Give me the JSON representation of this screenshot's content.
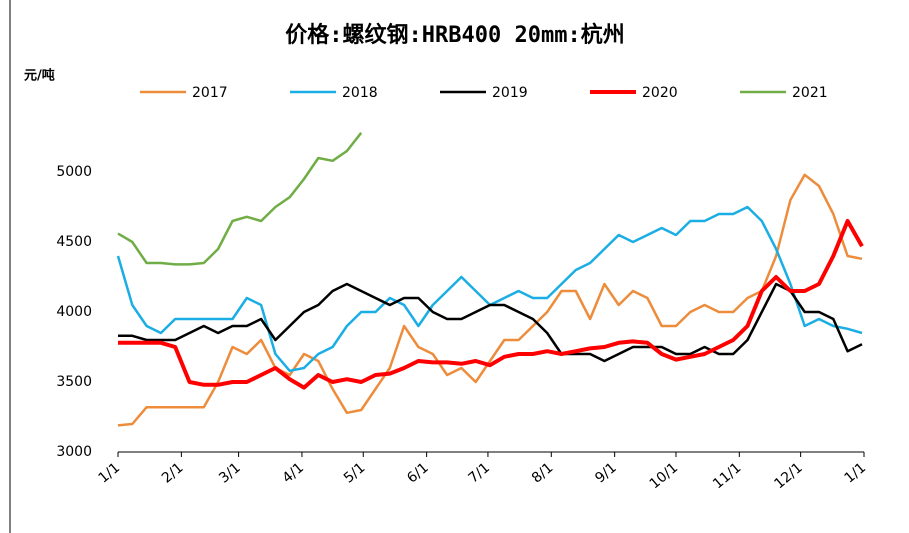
{
  "chart_data": {
    "type": "line",
    "title": "价格:螺纹钢:HRB400 20mm:杭州",
    "y_label": "元/吨",
    "x": [
      0,
      7,
      14,
      21,
      28,
      35,
      42,
      49,
      56,
      63,
      70,
      77,
      84,
      91,
      98,
      105,
      112,
      119,
      126,
      133,
      140,
      147,
      154,
      161,
      168,
      175,
      182,
      189,
      196,
      203,
      210,
      217,
      224,
      231,
      238,
      245,
      252,
      259,
      266,
      273,
      280,
      287,
      294,
      301,
      308,
      315,
      322,
      329,
      336,
      343,
      350,
      357,
      364
    ],
    "xlim": [
      0,
      365
    ],
    "xticks": [
      {
        "value": 0,
        "label": "1/1"
      },
      {
        "value": 31,
        "label": "2/1"
      },
      {
        "value": 59,
        "label": "3/1"
      },
      {
        "value": 90,
        "label": "4/1"
      },
      {
        "value": 120,
        "label": "5/1"
      },
      {
        "value": 151,
        "label": "6/1"
      },
      {
        "value": 181,
        "label": "7/1"
      },
      {
        "value": 212,
        "label": "8/1"
      },
      {
        "value": 243,
        "label": "9/1"
      },
      {
        "value": 273,
        "label": "10/1"
      },
      {
        "value": 304,
        "label": "11/1"
      },
      {
        "value": 334,
        "label": "12/1"
      },
      {
        "value": 365,
        "label": "1/1"
      }
    ],
    "ylim": [
      3000,
      5300
    ],
    "yticks": [
      3000,
      3500,
      4000,
      4500,
      5000
    ],
    "grid": false,
    "legend": "top",
    "series": [
      {
        "name": "2017",
        "color": "#ed8c3b",
        "values": [
          3190,
          3200,
          3320,
          3320,
          3320,
          3320,
          3320,
          3500,
          3750,
          3700,
          3800,
          3600,
          3550,
          3700,
          3650,
          3450,
          3280,
          3300,
          3450,
          3600,
          3900,
          3750,
          3700,
          3550,
          3600,
          3500,
          3650,
          3800,
          3800,
          3900,
          4000,
          4150,
          4150,
          3950,
          4200,
          4050,
          4150,
          4100,
          3900,
          3900,
          4000,
          4050,
          4000,
          4000,
          4100,
          4150,
          4400,
          4800,
          4980,
          4900,
          4700,
          4400,
          4380
        ]
      },
      {
        "name": "2018",
        "color": "#1aaee5",
        "values": [
          4400,
          4050,
          3900,
          3850,
          3950,
          3950,
          3950,
          3950,
          3950,
          4100,
          4050,
          3700,
          3580,
          3600,
          3700,
          3750,
          3900,
          4000,
          4000,
          4100,
          4050,
          3900,
          4050,
          4150,
          4250,
          4150,
          4050,
          4100,
          4150,
          4100,
          4100,
          4200,
          4300,
          4350,
          4450,
          4550,
          4500,
          4550,
          4600,
          4550,
          4650,
          4650,
          4700,
          4700,
          4750,
          4650,
          4450,
          4200,
          3900,
          3950,
          3900,
          3880,
          3850
        ]
      },
      {
        "name": "2019",
        "color": "#000000",
        "values": [
          3830,
          3830,
          3800,
          3800,
          3800,
          3850,
          3900,
          3850,
          3900,
          3900,
          3950,
          3800,
          3900,
          4000,
          4050,
          4150,
          4200,
          4150,
          4100,
          4050,
          4100,
          4100,
          4000,
          3950,
          3950,
          4000,
          4050,
          4050,
          4000,
          3950,
          3850,
          3700,
          3700,
          3700,
          3650,
          3700,
          3750,
          3750,
          3750,
          3700,
          3700,
          3750,
          3700,
          3700,
          3800,
          4000,
          4200,
          4150,
          4000,
          4000,
          3950,
          3720,
          3770
        ]
      },
      {
        "name": "2020",
        "color": "#ff0000",
        "values": [
          3780,
          3780,
          3780,
          3780,
          3750,
          3500,
          3480,
          3480,
          3500,
          3500,
          3550,
          3600,
          3520,
          3460,
          3550,
          3500,
          3520,
          3500,
          3550,
          3560,
          3600,
          3650,
          3640,
          3640,
          3630,
          3650,
          3620,
          3680,
          3700,
          3700,
          3720,
          3700,
          3720,
          3740,
          3750,
          3780,
          3790,
          3780,
          3700,
          3660,
          3680,
          3700,
          3750,
          3800,
          3900,
          4150,
          4250,
          4150,
          4150,
          4200,
          4400,
          4650,
          4470
        ]
      },
      {
        "name": "2021",
        "color": "#70ad47",
        "values": [
          4560,
          4500,
          4350,
          4350,
          4340,
          4340,
          4350,
          4450,
          4650,
          4680,
          4650,
          4750,
          4820,
          4950,
          5100,
          5080,
          5150,
          5280,
          null,
          null,
          null,
          null,
          null,
          null,
          null,
          null,
          null,
          null,
          null,
          null,
          null,
          null,
          null,
          null,
          null,
          null,
          null,
          null,
          null,
          null,
          null,
          null,
          null,
          null,
          null,
          null,
          null,
          null,
          null,
          null,
          null,
          null,
          null
        ]
      }
    ]
  }
}
